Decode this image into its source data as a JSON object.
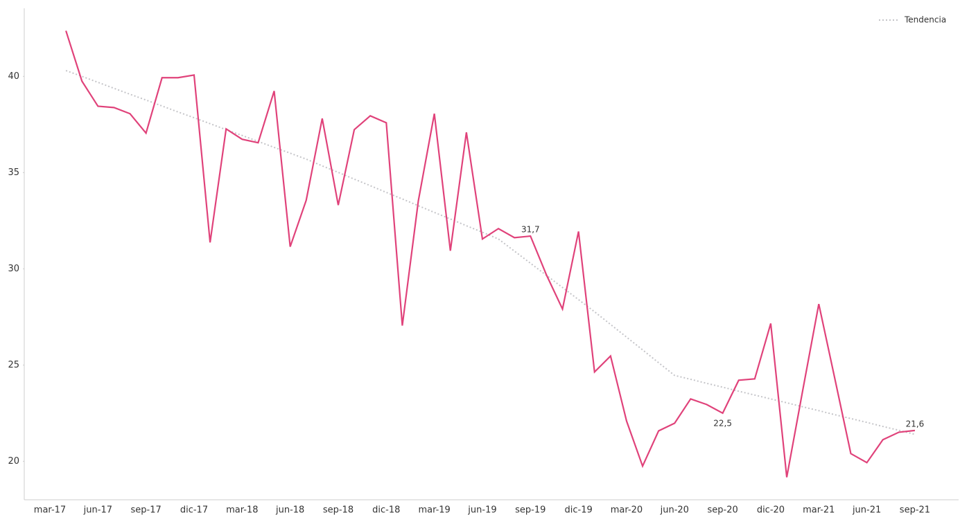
{
  "chart_data": {
    "type": "line",
    "categories": [
      "mar-17",
      null,
      null,
      "jun-17",
      null,
      null,
      "sep-17",
      null,
      null,
      "dic-17",
      null,
      null,
      "mar-18",
      null,
      null,
      "jun-18",
      null,
      null,
      "sep-18",
      null,
      null,
      "dic-18",
      null,
      null,
      "mar-19",
      null,
      null,
      "jun-19",
      null,
      null,
      "sep-19",
      null,
      null,
      "dic-19",
      null,
      null,
      "mar-20",
      null,
      null,
      "jun-20",
      null,
      null,
      "sep-20",
      null,
      null,
      "dic-20",
      null,
      null,
      "mar-21",
      null,
      null,
      "jun-21",
      null,
      null,
      "sep-21"
    ],
    "series": [
      {
        "color": "#e0427a",
        "style": "solid",
        "values": [
          null,
          42.37,
          39.75,
          38.45,
          38.38,
          38.06,
          37.05,
          39.93,
          39.93,
          40.07,
          31.37,
          37.27,
          36.73,
          36.55,
          39.24,
          31.15,
          33.56,
          37.81,
          33.31,
          37.23,
          37.95,
          37.59,
          27.05,
          33.53,
          38.06,
          30.94,
          37.09,
          31.55,
          32.09,
          31.62,
          31.7,
          29.68,
          27.91,
          31.94,
          24.64,
          25.47,
          22.09,
          19.75,
          21.58,
          21.98,
          23.24,
          22.95,
          22.5,
          24.21,
          24.28,
          27.16,
          19.17,
          23.7,
          28.17,
          24.3,
          20.4,
          19.93,
          21.12,
          21.51,
          21.6
        ],
        "value_labels": [
          null,
          null,
          null,
          null,
          null,
          null,
          null,
          null,
          null,
          null,
          null,
          null,
          null,
          null,
          null,
          null,
          null,
          null,
          null,
          null,
          null,
          null,
          null,
          null,
          null,
          null,
          null,
          null,
          null,
          null,
          "31,7",
          null,
          null,
          null,
          null,
          null,
          null,
          null,
          null,
          null,
          null,
          null,
          "22,5",
          null,
          null,
          null,
          null,
          null,
          null,
          null,
          null,
          null,
          null,
          null,
          "21,6"
        ]
      },
      {
        "name": "Tendencia",
        "color": "#c4c4c8",
        "style": "dotted",
        "values": [
          null,
          40.3,
          40.0,
          39.69,
          39.38,
          39.07,
          38.77,
          38.46,
          38.15,
          37.85,
          37.54,
          37.23,
          36.93,
          36.62,
          36.31,
          36.01,
          35.7,
          35.35,
          35.01,
          34.66,
          34.32,
          33.97,
          33.63,
          33.28,
          32.93,
          32.59,
          32.24,
          31.9,
          31.55,
          30.92,
          30.29,
          29.66,
          29.03,
          28.4,
          27.77,
          27.11,
          26.45,
          25.79,
          25.12,
          24.46,
          24.26,
          24.05,
          23.85,
          23.64,
          23.44,
          23.24,
          23.04,
          22.83,
          22.63,
          22.42,
          22.22,
          22.02,
          21.81,
          21.61,
          21.4
        ]
      }
    ],
    "ylim": [
      18,
      43.5
    ],
    "yticks": [
      20,
      25,
      30,
      35,
      40
    ],
    "grid": false,
    "legend": "upper right"
  }
}
